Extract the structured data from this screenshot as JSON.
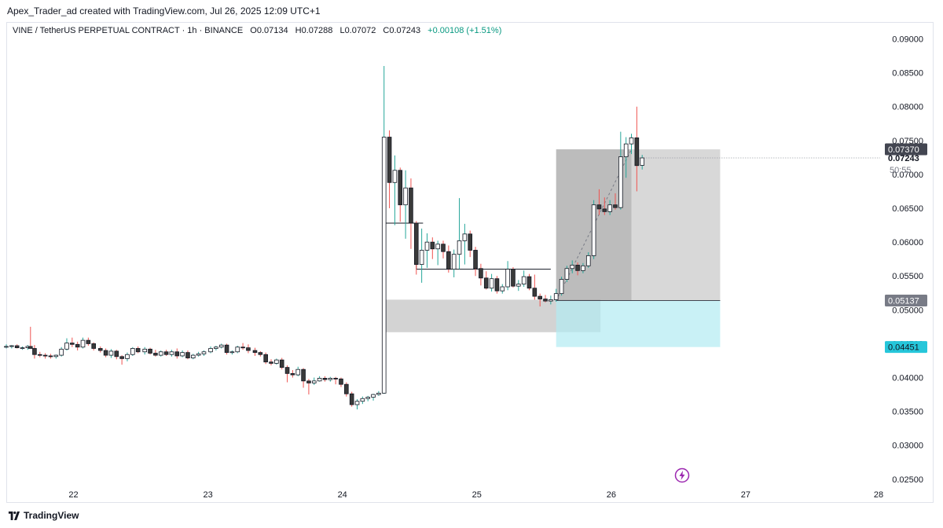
{
  "attribution": "Apex_Trader_ad created with TradingView.com, Jul 26, 2025 12:09 UTC+1",
  "legend": {
    "symbol": "VINE / TetherUS PERPETUAL CONTRACT · 1h · BINANCE",
    "open_label": "O",
    "open": "0.07134",
    "high_label": "H",
    "high": "0.07288",
    "low_label": "L",
    "low": "0.07072",
    "close_label": "C",
    "close": "0.07243",
    "change": "+0.00108 (+1.51%)"
  },
  "footer": {
    "brand": "TradingView"
  },
  "colors": {
    "up_wick": "#26a69a",
    "down_wick": "#ef5350",
    "body_up": "#ffffff",
    "body_down": "#3a3a3a",
    "zone_gray": "#9e9e9e",
    "zone_cyan": "#b2ebf2",
    "tag_dark": "#434651",
    "tag_gray": "#787b86",
    "tag_cyan": "#26c6da"
  },
  "chart_data": {
    "type": "candlestick",
    "x_ticks": [
      "22",
      "23",
      "24",
      "25",
      "26",
      "27",
      "28"
    ],
    "y_ticks": [
      "0.09000",
      "0.08500",
      "0.08000",
      "0.07500",
      "0.07000",
      "0.06500",
      "0.06000",
      "0.05500",
      "0.05000",
      "0.04500",
      "0.04000",
      "0.03500",
      "0.03000",
      "0.02500"
    ],
    "ylim": [
      0.0215,
      0.0925
    ],
    "xlim_days": [
      21.5,
      28.0
    ],
    "price_tags": [
      {
        "label": "0.07370",
        "value": 0.0737,
        "style": "dark"
      },
      {
        "label": "0.07243",
        "value": 0.07243,
        "style": "current"
      },
      {
        "label": "50:55",
        "value": 0.0707,
        "style": "countdown"
      },
      {
        "label": "0.05137",
        "value": 0.05137,
        "style": "gray"
      },
      {
        "label": "0.04451",
        "value": 0.04451,
        "style": "cyan"
      }
    ],
    "candles": [
      [
        21.5,
        0.0445,
        0.0449,
        0.0443,
        0.0446
      ],
      [
        21.54,
        0.0446,
        0.0448,
        0.0443,
        0.0447
      ],
      [
        21.58,
        0.0447,
        0.0449,
        0.0443,
        0.0444
      ],
      [
        21.62,
        0.0444,
        0.0446,
        0.0441,
        0.0444
      ],
      [
        21.66,
        0.0444,
        0.0448,
        0.0441,
        0.0446
      ],
      [
        21.68,
        0.0446,
        0.0475,
        0.0443,
        0.0443
      ],
      [
        21.71,
        0.0443,
        0.0448,
        0.0428,
        0.0434
      ],
      [
        21.75,
        0.0434,
        0.0438,
        0.043,
        0.0433
      ],
      [
        21.79,
        0.0433,
        0.0436,
        0.0428,
        0.0432
      ],
      [
        21.83,
        0.0432,
        0.0435,
        0.0428,
        0.0431
      ],
      [
        21.87,
        0.0431,
        0.0434,
        0.0428,
        0.0433
      ],
      [
        21.91,
        0.0433,
        0.0445,
        0.0431,
        0.0442
      ],
      [
        21.95,
        0.0442,
        0.0458,
        0.044,
        0.0451
      ],
      [
        21.99,
        0.0451,
        0.0459,
        0.0445,
        0.0449
      ],
      [
        22.03,
        0.0449,
        0.0453,
        0.044,
        0.0445
      ],
      [
        22.07,
        0.0445,
        0.0459,
        0.0443,
        0.0455
      ],
      [
        22.11,
        0.0455,
        0.0459,
        0.0447,
        0.045
      ],
      [
        22.15,
        0.045,
        0.0452,
        0.044,
        0.0443
      ],
      [
        22.2,
        0.0443,
        0.0446,
        0.0437,
        0.044
      ],
      [
        22.24,
        0.044,
        0.0443,
        0.043,
        0.0433
      ],
      [
        22.28,
        0.0433,
        0.0442,
        0.0429,
        0.0439
      ],
      [
        22.32,
        0.0439,
        0.0441,
        0.0427,
        0.0431
      ],
      [
        22.36,
        0.0431,
        0.0433,
        0.0419,
        0.0428
      ],
      [
        22.4,
        0.0428,
        0.0437,
        0.0424,
        0.0434
      ],
      [
        22.44,
        0.0434,
        0.0445,
        0.0432,
        0.0443
      ],
      [
        22.48,
        0.0443,
        0.0446,
        0.0436,
        0.0438
      ],
      [
        22.53,
        0.0438,
        0.0445,
        0.0434,
        0.0442
      ],
      [
        22.57,
        0.0442,
        0.0444,
        0.0434,
        0.0436
      ],
      [
        22.61,
        0.0436,
        0.0441,
        0.0431,
        0.0433
      ],
      [
        22.65,
        0.0433,
        0.044,
        0.0431,
        0.0438
      ],
      [
        22.69,
        0.0438,
        0.0441,
        0.0432,
        0.0434
      ],
      [
        22.73,
        0.0434,
        0.0441,
        0.0431,
        0.0438
      ],
      [
        22.77,
        0.0438,
        0.0443,
        0.0428,
        0.0432
      ],
      [
        22.81,
        0.0432,
        0.044,
        0.043,
        0.0437
      ],
      [
        22.85,
        0.0437,
        0.044,
        0.0427,
        0.0429
      ],
      [
        22.89,
        0.0429,
        0.0435,
        0.0427,
        0.0433
      ],
      [
        22.93,
        0.0433,
        0.0438,
        0.0431,
        0.0435
      ],
      [
        22.97,
        0.0435,
        0.044,
        0.0432,
        0.0438
      ],
      [
        23.02,
        0.0438,
        0.0446,
        0.0436,
        0.0443
      ],
      [
        23.06,
        0.0443,
        0.0447,
        0.044,
        0.0445
      ],
      [
        23.1,
        0.0445,
        0.045,
        0.0443,
        0.0448
      ],
      [
        23.14,
        0.0448,
        0.045,
        0.0434,
        0.0437
      ],
      [
        23.18,
        0.0437,
        0.044,
        0.0434,
        0.0438
      ],
      [
        23.22,
        0.0438,
        0.0447,
        0.0436,
        0.0445
      ],
      [
        23.26,
        0.0445,
        0.0451,
        0.0441,
        0.0444
      ],
      [
        23.3,
        0.0444,
        0.0449,
        0.0436,
        0.044
      ],
      [
        23.35,
        0.044,
        0.0444,
        0.0432,
        0.0437
      ],
      [
        23.39,
        0.0437,
        0.0439,
        0.0431,
        0.0434
      ],
      [
        23.43,
        0.0434,
        0.0437,
        0.042,
        0.0423
      ],
      [
        23.47,
        0.0423,
        0.0427,
        0.0418,
        0.0421
      ],
      [
        23.51,
        0.0421,
        0.0428,
        0.0419,
        0.0426
      ],
      [
        23.55,
        0.0426,
        0.0429,
        0.0412,
        0.0415
      ],
      [
        23.59,
        0.0415,
        0.0418,
        0.0393,
        0.0406
      ],
      [
        23.63,
        0.0406,
        0.0411,
        0.04,
        0.0404
      ],
      [
        23.67,
        0.0404,
        0.0416,
        0.0402,
        0.0412
      ],
      [
        23.71,
        0.0412,
        0.0414,
        0.0385,
        0.0395
      ],
      [
        23.75,
        0.0395,
        0.0398,
        0.0375,
        0.0392
      ],
      [
        23.79,
        0.0392,
        0.04,
        0.0389,
        0.0395
      ],
      [
        23.83,
        0.0395,
        0.0402,
        0.0394,
        0.0399
      ],
      [
        23.87,
        0.0399,
        0.0402,
        0.0394,
        0.0397
      ],
      [
        23.91,
        0.0397,
        0.0401,
        0.0394,
        0.0399
      ],
      [
        23.95,
        0.0399,
        0.0401,
        0.039,
        0.0398
      ],
      [
        23.99,
        0.0398,
        0.04,
        0.0386,
        0.039
      ],
      [
        24.03,
        0.039,
        0.0393,
        0.0372,
        0.0376
      ],
      [
        24.07,
        0.0376,
        0.0379,
        0.0357,
        0.036
      ],
      [
        24.11,
        0.036,
        0.0368,
        0.0353,
        0.0365
      ],
      [
        24.15,
        0.0365,
        0.0372,
        0.0361,
        0.0369
      ],
      [
        24.19,
        0.0369,
        0.0373,
        0.0365,
        0.0371
      ],
      [
        24.23,
        0.0371,
        0.0376,
        0.0366,
        0.0375
      ],
      [
        24.27,
        0.0375,
        0.038,
        0.0373,
        0.0377
      ],
      [
        24.31,
        0.0377,
        0.086,
        0.0376,
        0.0755
      ],
      [
        24.35,
        0.0755,
        0.0765,
        0.065,
        0.0688
      ],
      [
        24.39,
        0.0688,
        0.0728,
        0.0625,
        0.0706
      ],
      [
        24.43,
        0.0706,
        0.071,
        0.063,
        0.0655
      ],
      [
        24.47,
        0.0655,
        0.0706,
        0.0605,
        0.068
      ],
      [
        24.51,
        0.068,
        0.0694,
        0.059,
        0.0628
      ],
      [
        24.55,
        0.0628,
        0.0631,
        0.0552,
        0.0567
      ],
      [
        24.59,
        0.0567,
        0.062,
        0.054,
        0.0588
      ],
      [
        24.63,
        0.0588,
        0.0613,
        0.0562,
        0.06
      ],
      [
        24.67,
        0.06,
        0.0607,
        0.0575,
        0.059
      ],
      [
        24.71,
        0.059,
        0.0602,
        0.0566,
        0.0597
      ],
      [
        24.75,
        0.0597,
        0.0602,
        0.0576,
        0.0586
      ],
      [
        24.79,
        0.0586,
        0.0595,
        0.0555,
        0.056
      ],
      [
        24.83,
        0.056,
        0.0589,
        0.0548,
        0.0582
      ],
      [
        24.87,
        0.0582,
        0.0665,
        0.056,
        0.0602
      ],
      [
        24.91,
        0.0602,
        0.0627,
        0.0567,
        0.0612
      ],
      [
        24.95,
        0.0612,
        0.0617,
        0.0578,
        0.0588
      ],
      [
        24.99,
        0.0588,
        0.0593,
        0.055,
        0.0561
      ],
      [
        25.03,
        0.0561,
        0.0568,
        0.0536,
        0.0547
      ],
      [
        25.07,
        0.0547,
        0.0557,
        0.053,
        0.0532
      ],
      [
        25.11,
        0.0532,
        0.0553,
        0.0527,
        0.0546
      ],
      [
        25.15,
        0.0546,
        0.055,
        0.0524,
        0.0528
      ],
      [
        25.19,
        0.0528,
        0.0538,
        0.0524,
        0.0534
      ],
      [
        25.23,
        0.0534,
        0.0572,
        0.0529,
        0.056
      ],
      [
        25.27,
        0.056,
        0.0563,
        0.0533,
        0.0535
      ],
      [
        25.31,
        0.0535,
        0.0544,
        0.0528,
        0.0538
      ],
      [
        25.35,
        0.0538,
        0.0558,
        0.0534,
        0.0549
      ],
      [
        25.39,
        0.0549,
        0.0553,
        0.0529,
        0.0532
      ],
      [
        25.43,
        0.0532,
        0.0552,
        0.0515,
        0.052
      ],
      [
        25.47,
        0.052,
        0.0524,
        0.0505,
        0.0516
      ],
      [
        25.51,
        0.0516,
        0.0522,
        0.0511,
        0.0513
      ],
      [
        25.55,
        0.0513,
        0.0521,
        0.0508,
        0.0515
      ],
      [
        25.59,
        0.0515,
        0.0531,
        0.0512,
        0.0524
      ],
      [
        25.63,
        0.0524,
        0.0549,
        0.0521,
        0.0545
      ],
      [
        25.67,
        0.0545,
        0.0565,
        0.0541,
        0.0561
      ],
      [
        25.71,
        0.0561,
        0.0573,
        0.0554,
        0.0566
      ],
      [
        25.75,
        0.0566,
        0.057,
        0.0551,
        0.0558
      ],
      [
        25.79,
        0.0558,
        0.0569,
        0.0554,
        0.0565
      ],
      [
        25.83,
        0.0565,
        0.0585,
        0.0562,
        0.058
      ],
      [
        25.87,
        0.058,
        0.0662,
        0.0575,
        0.0655
      ],
      [
        25.91,
        0.0655,
        0.0678,
        0.064,
        0.0649
      ],
      [
        25.95,
        0.0649,
        0.0666,
        0.064,
        0.0645
      ],
      [
        25.99,
        0.0645,
        0.0662,
        0.064,
        0.0655
      ],
      [
        26.03,
        0.0655,
        0.0672,
        0.0648,
        0.0651
      ],
      [
        26.07,
        0.0651,
        0.0763,
        0.0648,
        0.0726
      ],
      [
        26.11,
        0.0726,
        0.0755,
        0.0695,
        0.0745
      ],
      [
        26.15,
        0.0745,
        0.076,
        0.073,
        0.0754
      ],
      [
        26.19,
        0.0754,
        0.08,
        0.0675,
        0.0713
      ],
      [
        26.23,
        0.07134,
        0.07288,
        0.07072,
        0.07243
      ]
    ],
    "zones": [
      {
        "name": "gray-supply-zone",
        "x0": 24.31,
        "x1": 25.92,
        "y0": 0.0467,
        "y1": 0.0515
      },
      {
        "name": "long-position-profit",
        "x0": 25.59,
        "x1": 26.81,
        "y0": 0.05137,
        "y1": 0.0737
      },
      {
        "name": "long-position-stop",
        "x0": 25.59,
        "x1": 26.81,
        "y0": 0.04451,
        "y1": 0.05137
      }
    ],
    "hlines": [
      {
        "name": "range-line-1",
        "x0": 24.31,
        "x1": 24.6,
        "y": 0.0628
      },
      {
        "name": "range-line-2",
        "x0": 24.55,
        "x1": 25.55,
        "y": 0.056
      }
    ]
  }
}
